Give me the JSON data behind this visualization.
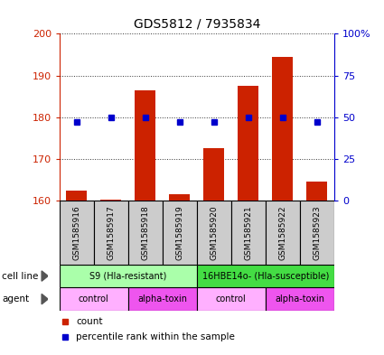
{
  "title": "GDS5812 / 7935834",
  "samples": [
    "GSM1585916",
    "GSM1585917",
    "GSM1585918",
    "GSM1585919",
    "GSM1585920",
    "GSM1585921",
    "GSM1585922",
    "GSM1585923"
  ],
  "counts": [
    162.5,
    160.2,
    186.5,
    161.5,
    172.5,
    187.5,
    194.5,
    164.5
  ],
  "percentile_ranks": [
    47,
    50,
    50,
    47,
    47,
    50,
    50,
    47
  ],
  "ylim_left": [
    160,
    200
  ],
  "ylim_right": [
    0,
    100
  ],
  "yticks_left": [
    160,
    170,
    180,
    190,
    200
  ],
  "yticks_right": [
    0,
    25,
    50,
    75,
    100
  ],
  "ytick_labels_right": [
    "0",
    "25",
    "50",
    "75",
    "100%"
  ],
  "cell_line_groups": [
    {
      "label": "S9 (Hla-resistant)",
      "start": 0,
      "end": 3,
      "color": "#AAFFAA"
    },
    {
      "label": "16HBE14o- (Hla-susceptible)",
      "start": 4,
      "end": 7,
      "color": "#44DD44"
    }
  ],
  "agent_groups": [
    {
      "label": "control",
      "start": 0,
      "end": 1,
      "color": "#FFB0FF"
    },
    {
      "label": "alpha-toxin",
      "start": 2,
      "end": 3,
      "color": "#EE55EE"
    },
    {
      "label": "control",
      "start": 4,
      "end": 5,
      "color": "#FFB0FF"
    },
    {
      "label": "alpha-toxin",
      "start": 6,
      "end": 7,
      "color": "#EE55EE"
    }
  ],
  "bar_color": "#CC2200",
  "dot_color": "#0000CC",
  "bar_bottom": 160,
  "left_axis_color": "#CC2200",
  "right_axis_color": "#0000CC",
  "sample_box_color": "#CCCCCC",
  "legend_count_color": "#CC2200",
  "legend_percentile_color": "#0000CC",
  "cell_line_label": "cell line",
  "agent_label": "agent",
  "legend_count_text": "count",
  "legend_pct_text": "percentile rank within the sample"
}
